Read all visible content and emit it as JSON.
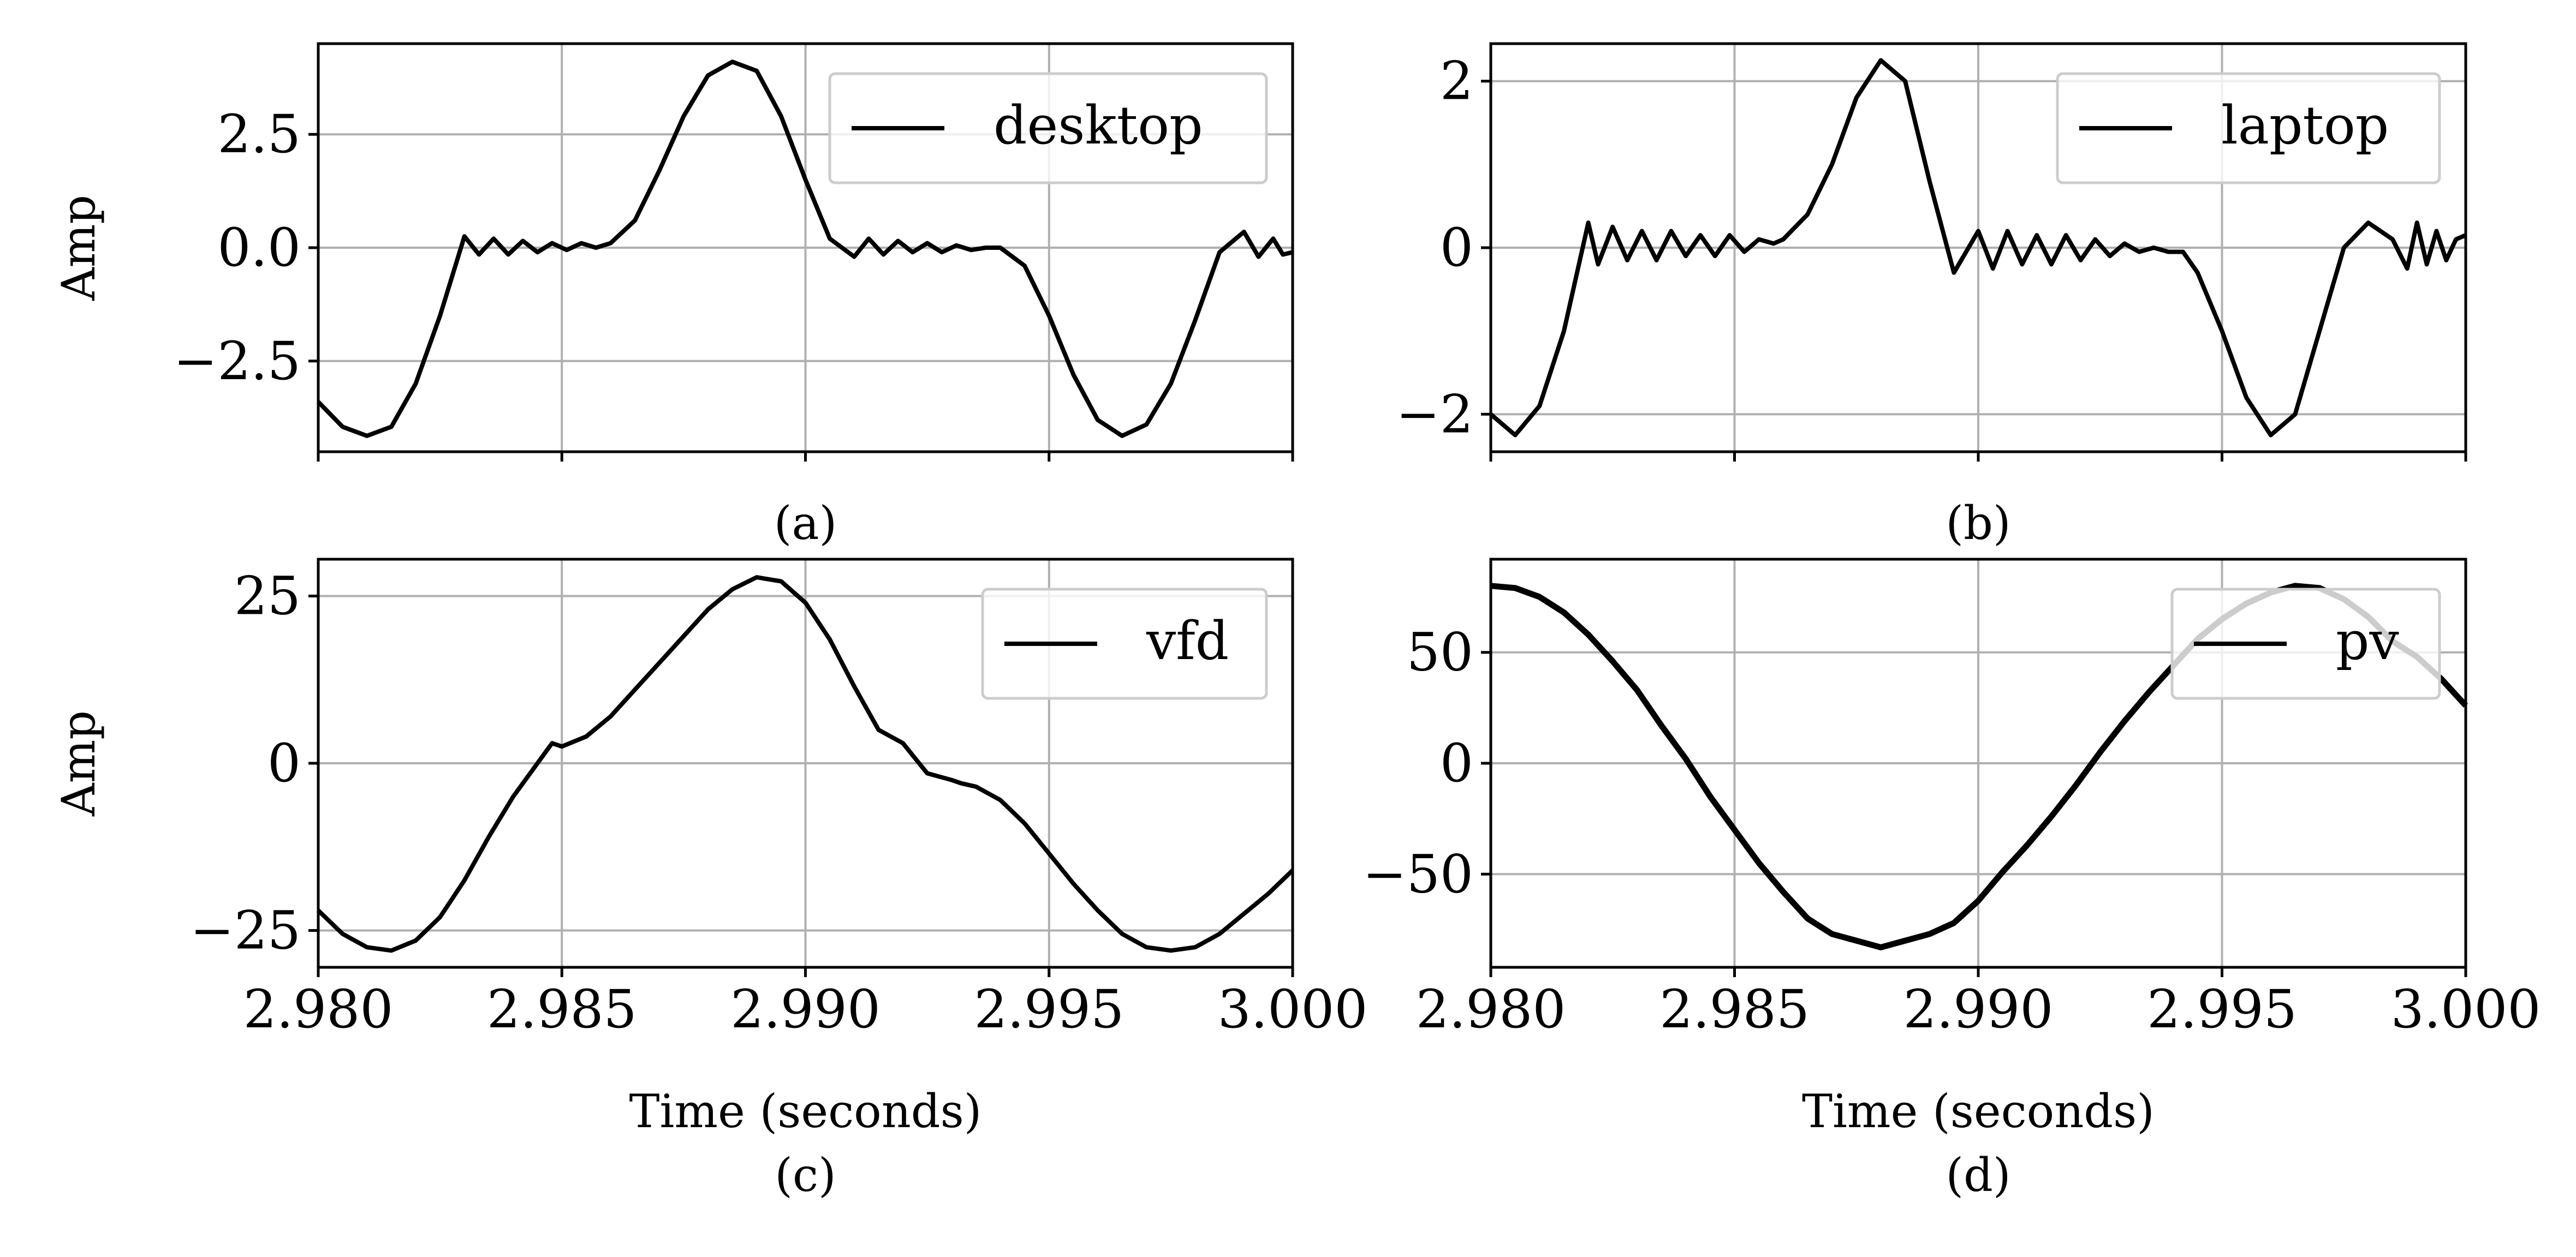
{
  "figure": {
    "panels": [
      {
        "caption": "(a)",
        "ylabel": "Amp",
        "xlabel": "",
        "legend": "desktop"
      },
      {
        "caption": "(b)",
        "ylabel": "",
        "xlabel": "",
        "legend": "laptop"
      },
      {
        "caption": "(c)",
        "ylabel": "Amp",
        "xlabel": "Time (seconds)",
        "legend": "vfd"
      },
      {
        "caption": "(d)",
        "ylabel": "",
        "xlabel": "Time (seconds)",
        "legend": "pv"
      }
    ]
  },
  "chart_data": [
    {
      "type": "line",
      "panel_caption": "(a)",
      "xlabel": "",
      "ylabel": "Amp",
      "xlim": [
        2.98,
        3.0
      ],
      "ylim": [
        -4.5,
        4.5
      ],
      "xticks": [
        2.98,
        2.985,
        2.99,
        2.995,
        3.0
      ],
      "xtick_labels": [
        "",
        "",
        "",
        "",
        ""
      ],
      "yticks": [
        -2.5,
        0.0,
        2.5
      ],
      "ytick_labels": [
        "−2.5",
        "0.0",
        "2.5"
      ],
      "grid": true,
      "legend_position": "top-right",
      "series": [
        {
          "name": "desktop",
          "color": "#000000",
          "x": [
            2.98,
            2.9805,
            2.981,
            2.9815,
            2.982,
            2.9825,
            2.983,
            2.9833,
            2.9836,
            2.9839,
            2.9842,
            2.9845,
            2.9848,
            2.9851,
            2.9854,
            2.9857,
            2.986,
            2.9865,
            2.987,
            2.9875,
            2.988,
            2.9885,
            2.989,
            2.9895,
            2.99,
            2.9905,
            2.991,
            2.9913,
            2.9916,
            2.9919,
            2.9922,
            2.9925,
            2.9928,
            2.9931,
            2.9934,
            2.9937,
            2.994,
            2.9945,
            2.995,
            2.9955,
            2.996,
            2.9965,
            2.997,
            2.9975,
            2.998,
            2.9985,
            2.999,
            2.9993,
            2.9996,
            2.9998,
            3.0
          ],
          "y": [
            -3.4,
            -3.95,
            -4.15,
            -3.95,
            -3.0,
            -1.5,
            0.25,
            -0.15,
            0.2,
            -0.15,
            0.15,
            -0.1,
            0.1,
            -0.05,
            0.1,
            0.0,
            0.1,
            0.6,
            1.7,
            2.9,
            3.8,
            4.1,
            3.9,
            2.9,
            1.5,
            0.2,
            -0.2,
            0.2,
            -0.15,
            0.15,
            -0.1,
            0.1,
            -0.1,
            0.05,
            -0.05,
            0.0,
            0.0,
            -0.4,
            -1.5,
            -2.8,
            -3.8,
            -4.15,
            -3.9,
            -3.0,
            -1.6,
            -0.1,
            0.35,
            -0.2,
            0.2,
            -0.15,
            -0.1
          ]
        }
      ]
    },
    {
      "type": "line",
      "panel_caption": "(b)",
      "xlabel": "",
      "ylabel": "",
      "xlim": [
        2.98,
        3.0
      ],
      "ylim": [
        -2.45,
        2.45
      ],
      "xticks": [
        2.98,
        2.985,
        2.99,
        2.995,
        3.0
      ],
      "xtick_labels": [
        "",
        "",
        "",
        "",
        ""
      ],
      "yticks": [
        -2,
        0,
        2
      ],
      "ytick_labels": [
        "−2",
        "0",
        "2"
      ],
      "grid": true,
      "legend_position": "top-right",
      "series": [
        {
          "name": "laptop",
          "color": "#000000",
          "x": [
            2.98,
            2.9805,
            2.981,
            2.9815,
            2.982,
            2.9822,
            2.9825,
            2.9828,
            2.9831,
            2.9834,
            2.9837,
            2.984,
            2.9843,
            2.9846,
            2.9849,
            2.9852,
            2.9855,
            2.9858,
            2.986,
            2.9865,
            2.987,
            2.9875,
            2.988,
            2.9885,
            2.989,
            2.9895,
            2.99,
            2.9903,
            2.9906,
            2.9909,
            2.9912,
            2.9915,
            2.9918,
            2.9921,
            2.9924,
            2.9927,
            2.993,
            2.9933,
            2.9936,
            2.9939,
            2.9942,
            2.9945,
            2.995,
            2.9955,
            2.996,
            2.9965,
            2.997,
            2.9975,
            2.998,
            2.9985,
            2.9988,
            2.999,
            2.9992,
            2.9994,
            2.9996,
            2.9998,
            3.0
          ],
          "y": [
            -2.0,
            -2.25,
            -1.9,
            -1.0,
            0.3,
            -0.2,
            0.25,
            -0.15,
            0.2,
            -0.15,
            0.2,
            -0.1,
            0.15,
            -0.1,
            0.15,
            -0.05,
            0.1,
            0.05,
            0.1,
            0.4,
            1.0,
            1.8,
            2.25,
            2.0,
            0.8,
            -0.3,
            0.2,
            -0.25,
            0.2,
            -0.2,
            0.15,
            -0.2,
            0.15,
            -0.15,
            0.1,
            -0.1,
            0.05,
            -0.05,
            0.0,
            -0.05,
            -0.05,
            -0.3,
            -1.0,
            -1.8,
            -2.25,
            -2.0,
            -1.0,
            0.0,
            0.3,
            0.1,
            -0.25,
            0.3,
            -0.2,
            0.2,
            -0.15,
            0.1,
            0.15
          ]
        }
      ]
    },
    {
      "type": "line",
      "panel_caption": "(c)",
      "xlabel": "Time (seconds)",
      "ylabel": "Amp",
      "xlim": [
        2.98,
        3.0
      ],
      "ylim": [
        -30.5,
        30.5
      ],
      "xticks": [
        2.98,
        2.985,
        2.99,
        2.995,
        3.0
      ],
      "xtick_labels": [
        "2.980",
        "2.985",
        "2.990",
        "2.995",
        "3.000"
      ],
      "yticks": [
        -25,
        0,
        25
      ],
      "ytick_labels": [
        "−25",
        "0",
        "25"
      ],
      "grid": true,
      "legend_position": "top-right",
      "series": [
        {
          "name": "vfd",
          "color": "#000000",
          "x": [
            2.98,
            2.9805,
            2.981,
            2.9815,
            2.982,
            2.9825,
            2.983,
            2.9835,
            2.984,
            2.9845,
            2.9848,
            2.985,
            2.9855,
            2.986,
            2.9865,
            2.987,
            2.9875,
            2.988,
            2.9885,
            2.989,
            2.9895,
            2.99,
            2.9905,
            2.991,
            2.9915,
            2.992,
            2.9925,
            2.993,
            2.9932,
            2.9935,
            2.994,
            2.9945,
            2.995,
            2.9955,
            2.996,
            2.9965,
            2.997,
            2.9975,
            2.998,
            2.9985,
            2.999,
            2.9995,
            3.0
          ],
          "y": [
            -22,
            -25.5,
            -27.5,
            -28,
            -26.5,
            -23,
            -17.5,
            -11,
            -5,
            0,
            3,
            2.5,
            4,
            7,
            11,
            15,
            19,
            23,
            26,
            27.8,
            27.2,
            24,
            18.5,
            11.5,
            5,
            3,
            -1.5,
            -2.5,
            -3,
            -3.5,
            -5.5,
            -9,
            -13.5,
            -18,
            -22,
            -25.5,
            -27.5,
            -28,
            -27.5,
            -25.5,
            -22.5,
            -19.5,
            -16
          ]
        }
      ]
    },
    {
      "type": "line",
      "panel_caption": "(d)",
      "xlabel": "Time (seconds)",
      "ylabel": "",
      "xlim": [
        2.98,
        3.0
      ],
      "ylim": [
        -92,
        92
      ],
      "xticks": [
        2.98,
        2.985,
        2.99,
        2.995,
        3.0
      ],
      "xtick_labels": [
        "2.980",
        "2.985",
        "2.990",
        "2.995",
        "3.000"
      ],
      "yticks": [
        -50,
        0,
        50
      ],
      "ytick_labels": [
        "−50",
        "0",
        "50"
      ],
      "grid": true,
      "legend_position": "top-right",
      "series": [
        {
          "name": "pv",
          "color": "#000000",
          "x": [
            2.98,
            2.9805,
            2.981,
            2.9815,
            2.982,
            2.9825,
            2.983,
            2.9835,
            2.984,
            2.9845,
            2.985,
            2.9855,
            2.986,
            2.9865,
            2.987,
            2.9875,
            2.988,
            2.9885,
            2.989,
            2.9895,
            2.99,
            2.9905,
            2.991,
            2.9915,
            2.992,
            2.9925,
            2.993,
            2.9935,
            2.994,
            2.9945,
            2.995,
            2.9955,
            2.996,
            2.9965,
            2.997,
            2.9975,
            2.998,
            2.9985,
            2.999,
            2.9995,
            3.0
          ],
          "y": [
            80,
            79,
            75,
            68,
            58,
            46,
            33,
            17,
            2,
            -15,
            -30,
            -45,
            -58,
            -70,
            -77,
            -80,
            -83,
            -80,
            -77,
            -72,
            -62,
            -49,
            -37,
            -24,
            -10,
            5,
            19,
            32,
            44,
            56,
            65,
            72,
            77,
            80,
            79,
            74,
            66,
            55,
            48,
            38,
            26
          ]
        }
      ]
    }
  ]
}
